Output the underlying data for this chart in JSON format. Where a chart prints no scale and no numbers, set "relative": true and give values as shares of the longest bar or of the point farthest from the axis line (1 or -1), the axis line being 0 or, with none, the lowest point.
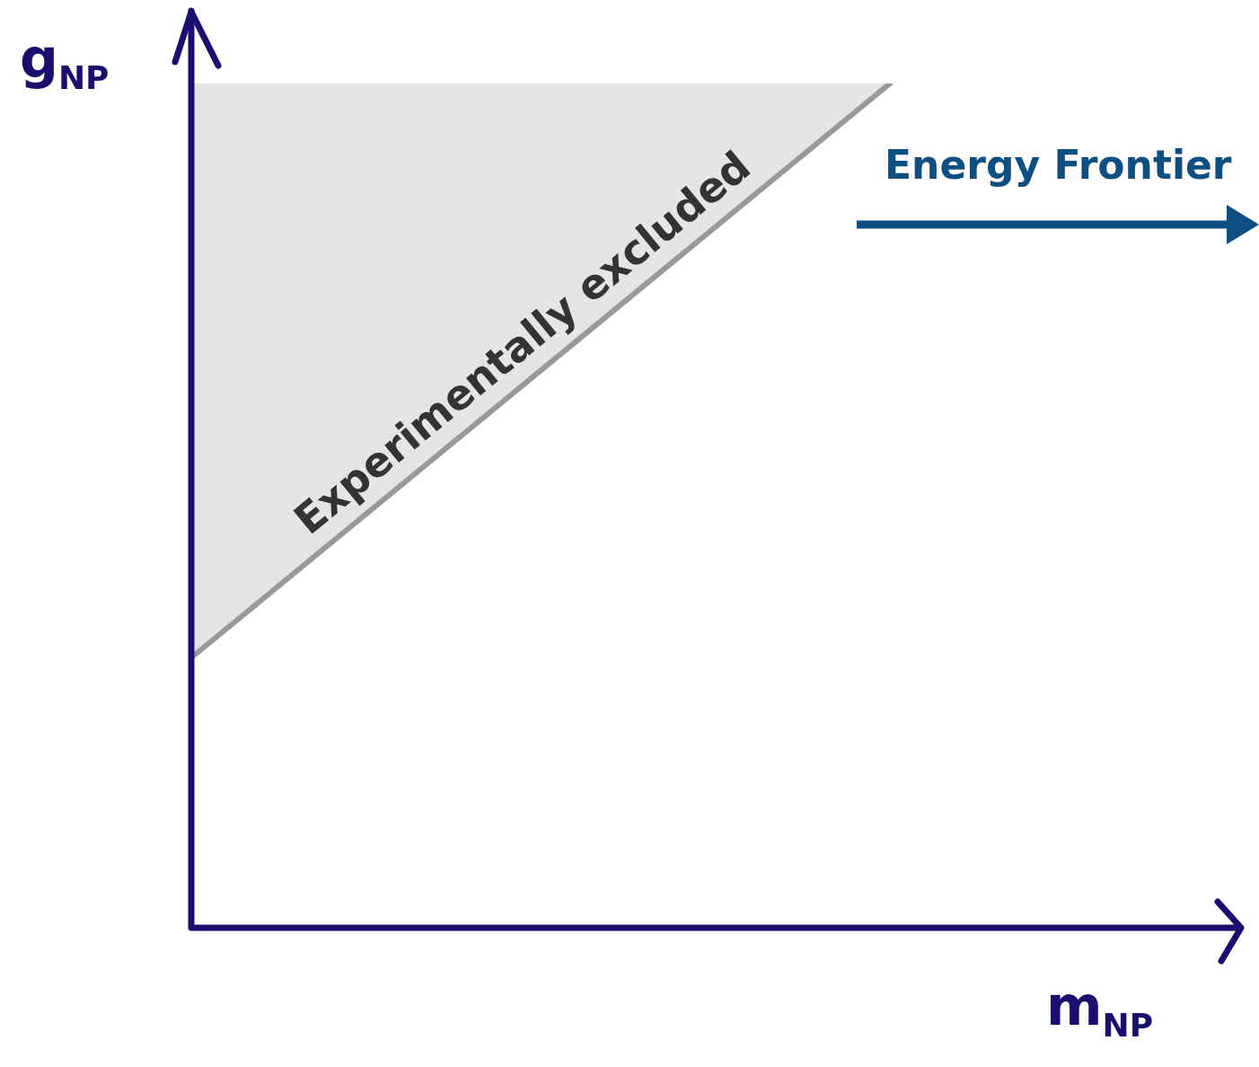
{
  "chart_data": {
    "type": "line",
    "relative": true,
    "xlabel": "m$_{NP}$",
    "ylabel": "g$_{NP}$",
    "categories": [
      null,
      null,
      null,
      null
    ],
    "series": [
      {
        "color": "#999999",
        "values": [
          0.32,
          0.66,
          1,
          null
        ],
        "lower": [
          0.32,
          0.66,
          1,
          null
        ],
        "upper": [
          1,
          1,
          1,
          null
        ]
      }
    ],
    "annotations": [
      "Experimentally excluded",
      "Energy Frontier"
    ],
    "marker": "none",
    "line_style": "solid"
  }
}
